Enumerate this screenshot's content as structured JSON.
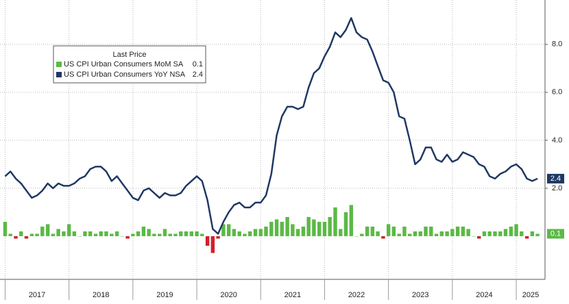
{
  "chart_data": {
    "type": "combo",
    "legend_title": "Last Price",
    "legend_position": "upper left",
    "grid": true,
    "xlim": [
      2016.92,
      2025.45
    ],
    "xticks": [
      {
        "value": 2017,
        "label": "2017"
      },
      {
        "value": 2018,
        "label": "2018"
      },
      {
        "value": 2019,
        "label": "2019"
      },
      {
        "value": 2020,
        "label": "2020"
      },
      {
        "value": 2021,
        "label": "2021"
      },
      {
        "value": 2022,
        "label": "2022"
      },
      {
        "value": 2023,
        "label": "2023"
      },
      {
        "value": 2024,
        "label": "2024"
      },
      {
        "value": 2025,
        "label": "2025"
      }
    ],
    "ylim": [
      -1.8,
      9.85
    ],
    "yticks": [
      {
        "value": 2,
        "label": "2.0"
      },
      {
        "value": 4,
        "label": "4.0"
      },
      {
        "value": 6,
        "label": "6.0"
      },
      {
        "value": 8,
        "label": "8.0"
      }
    ],
    "x": [
      2017,
      2017.083,
      2017.167,
      2017.25,
      2017.333,
      2017.417,
      2017.5,
      2017.583,
      2017.667,
      2017.75,
      2017.833,
      2017.917,
      2018,
      2018.083,
      2018.167,
      2018.25,
      2018.333,
      2018.417,
      2018.5,
      2018.583,
      2018.667,
      2018.75,
      2018.833,
      2018.917,
      2019,
      2019.083,
      2019.167,
      2019.25,
      2019.333,
      2019.417,
      2019.5,
      2019.583,
      2019.667,
      2019.75,
      2019.833,
      2019.917,
      2020,
      2020.083,
      2020.167,
      2020.25,
      2020.333,
      2020.417,
      2020.5,
      2020.583,
      2020.667,
      2020.75,
      2020.833,
      2020.917,
      2021,
      2021.083,
      2021.167,
      2021.25,
      2021.333,
      2021.417,
      2021.5,
      2021.583,
      2021.667,
      2021.75,
      2021.833,
      2021.917,
      2022,
      2022.083,
      2022.167,
      2022.25,
      2022.333,
      2022.417,
      2022.5,
      2022.583,
      2022.667,
      2022.75,
      2022.833,
      2022.917,
      2023,
      2023.083,
      2023.167,
      2023.25,
      2023.333,
      2023.417,
      2023.5,
      2023.583,
      2023.667,
      2023.75,
      2023.833,
      2023.917,
      2024,
      2024.083,
      2024.167,
      2024.25,
      2024.333,
      2024.417,
      2024.5,
      2024.583,
      2024.667,
      2024.75,
      2024.833,
      2024.917,
      2025,
      2025.083,
      2025.167,
      2025.25,
      2025.333
    ],
    "series": [
      {
        "name": "US CPI Urban Consumers MoM SA",
        "type": "bar",
        "color": "#5cb946",
        "negative_color": "#d0202a",
        "values": [
          0.6,
          0.1,
          -0.1,
          0.2,
          -0.1,
          0.1,
          0.1,
          0.4,
          0.5,
          0.1,
          0.3,
          0.2,
          0.5,
          0.2,
          0.0,
          0.2,
          0.2,
          0.1,
          0.2,
          0.2,
          0.1,
          0.2,
          0.0,
          -0.1,
          0.1,
          0.2,
          0.4,
          0.3,
          0.1,
          0.1,
          0.3,
          0.1,
          0.1,
          0.2,
          0.2,
          0.2,
          0.2,
          0.1,
          -0.4,
          -0.7,
          -0.1,
          0.5,
          0.5,
          0.3,
          0.2,
          0.1,
          0.2,
          0.3,
          0.3,
          0.4,
          0.6,
          0.7,
          0.6,
          0.8,
          0.5,
          0.3,
          0.4,
          0.8,
          0.7,
          0.6,
          0.6,
          0.8,
          1.2,
          0.3,
          1.0,
          1.3,
          0.0,
          0.1,
          0.4,
          0.4,
          0.2,
          -0.1,
          0.5,
          0.4,
          0.1,
          0.4,
          0.1,
          0.2,
          0.2,
          0.4,
          0.4,
          0.1,
          0.2,
          0.2,
          0.3,
          0.4,
          0.4,
          0.3,
          0.0,
          -0.1,
          0.2,
          0.2,
          0.2,
          0.2,
          0.3,
          0.4,
          0.5,
          0.2,
          -0.1,
          0.2,
          0.1
        ]
      },
      {
        "name": "US CPI Urban Consumers YoY NSA",
        "type": "line",
        "color": "#1f3864",
        "values": [
          2.5,
          2.7,
          2.4,
          2.2,
          1.9,
          1.6,
          1.7,
          1.9,
          2.2,
          2.0,
          2.2,
          2.1,
          2.1,
          2.2,
          2.4,
          2.5,
          2.8,
          2.9,
          2.9,
          2.7,
          2.3,
          2.5,
          2.2,
          1.9,
          1.6,
          1.5,
          1.9,
          2.0,
          1.8,
          1.6,
          1.8,
          1.7,
          1.7,
          1.8,
          2.1,
          2.3,
          2.5,
          2.3,
          1.5,
          0.3,
          0.1,
          0.6,
          1.0,
          1.3,
          1.4,
          1.2,
          1.2,
          1.4,
          1.4,
          1.7,
          2.6,
          4.2,
          5.0,
          5.4,
          5.4,
          5.3,
          5.4,
          6.2,
          6.8,
          7.0,
          7.5,
          7.9,
          8.5,
          8.3,
          8.6,
          9.1,
          8.5,
          8.3,
          8.2,
          7.7,
          7.1,
          6.5,
          6.4,
          6.0,
          5.0,
          4.9,
          4.0,
          3.0,
          3.2,
          3.7,
          3.7,
          3.2,
          3.1,
          3.4,
          3.1,
          3.2,
          3.5,
          3.4,
          3.3,
          3.0,
          2.9,
          2.5,
          2.4,
          2.6,
          2.7,
          2.9,
          3.0,
          2.8,
          2.4,
          2.3,
          2.4
        ]
      }
    ]
  }
}
